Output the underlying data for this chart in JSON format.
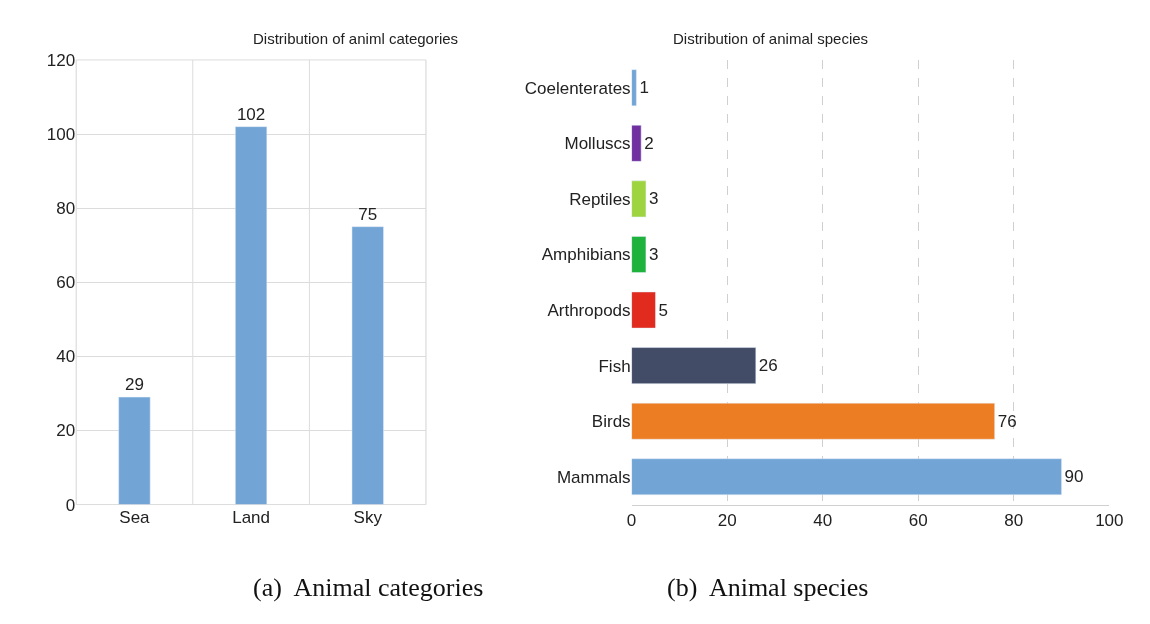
{
  "chart_data": [
    {
      "type": "bar",
      "title": "Distribution of animl categories",
      "categories": [
        "Sea",
        "Land",
        "Sky"
      ],
      "values": [
        29,
        102,
        75
      ],
      "color": "#72a5d6",
      "ylim": [
        0,
        120
      ],
      "yticks": [
        0,
        20,
        40,
        60,
        80,
        100,
        120
      ],
      "grid": true,
      "data_labels": true,
      "annotations": [
        "(a)  Animal categories"
      ]
    },
    {
      "type": "bar",
      "orientation": "horizontal",
      "title": "Distribution of animal species",
      "categories": [
        "Coelenterates",
        "Molluscs",
        "Reptiles",
        "Amphibians",
        "Arthropods",
        "Fish",
        "Birds",
        "Mammals"
      ],
      "values": [
        1,
        2,
        3,
        3,
        5,
        26,
        76,
        90
      ],
      "colors": [
        "#72a5d6",
        "#7030a0",
        "#9dd440",
        "#1fb33e",
        "#e02b1e",
        "#434c66",
        "#ed7d22",
        "#72a5d6"
      ],
      "xlim": [
        0,
        100
      ],
      "xticks": [
        0,
        20,
        40,
        60,
        80,
        100
      ],
      "grid": "x",
      "data_labels": true,
      "annotations": [
        "(b)  Animal species"
      ]
    }
  ]
}
